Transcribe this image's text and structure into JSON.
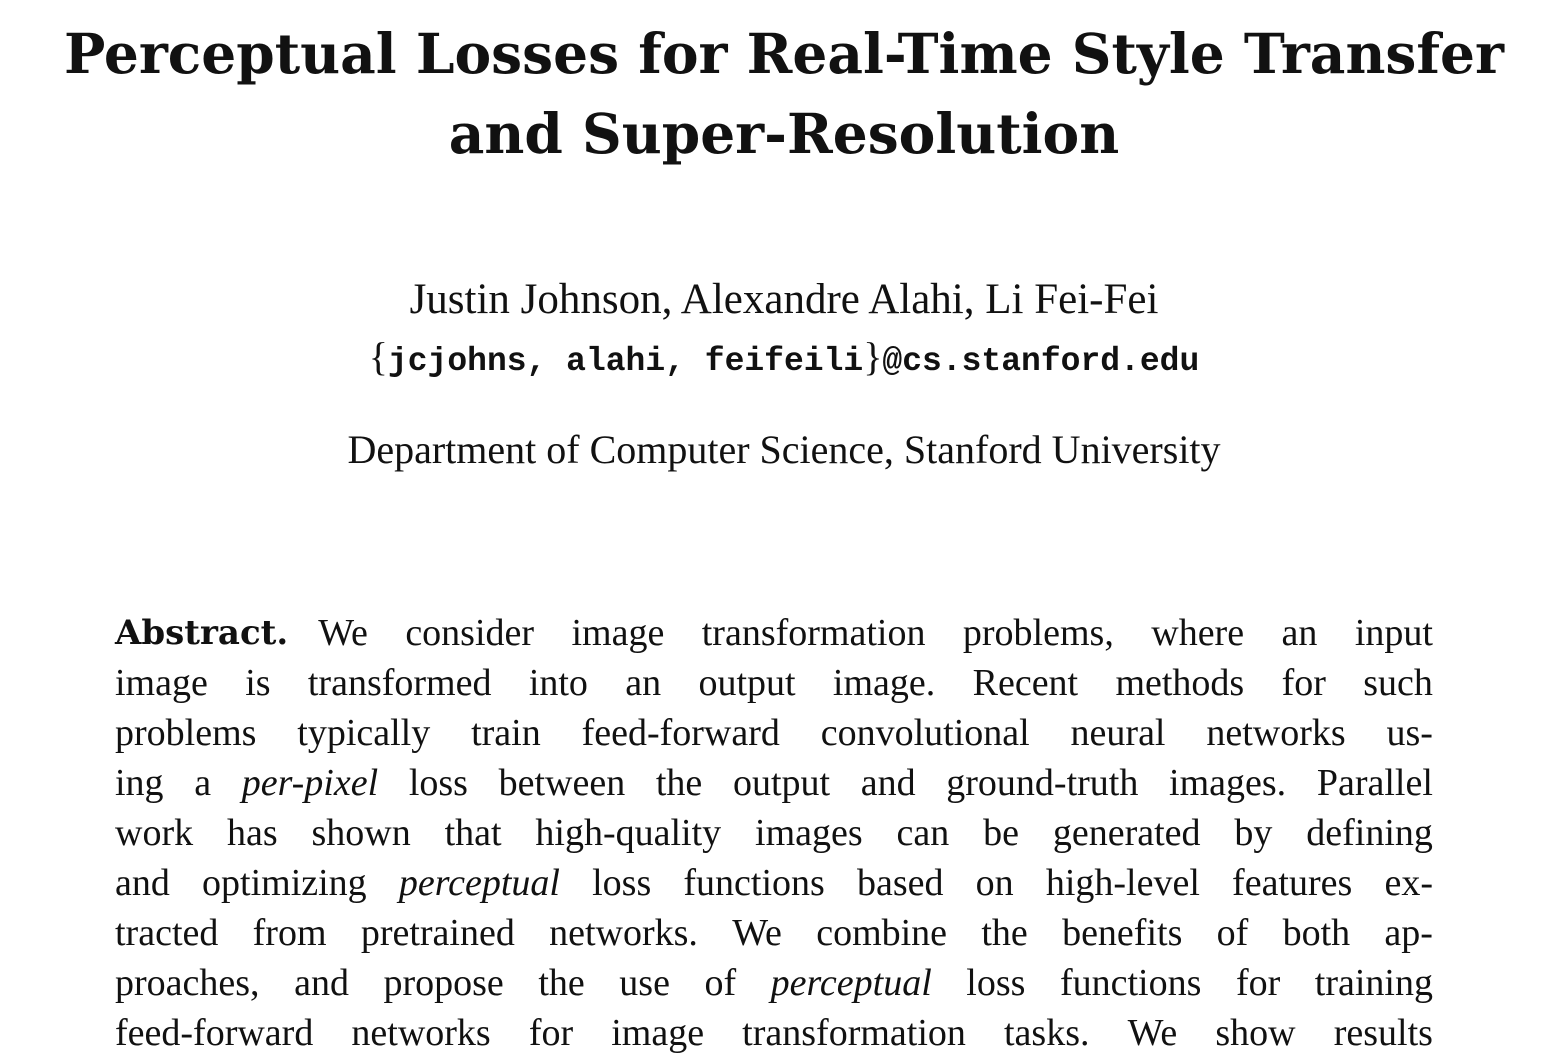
{
  "title": {
    "line1": "Perceptual Losses for Real-Time Style Transfer",
    "line2": "and Super-Resolution"
  },
  "authors": "Justin Johnson, Alexandre Alahi, Li Fei-Fei",
  "emails": {
    "open_brace": "{",
    "users": "jcjohns, alahi, feifeili",
    "close_brace": "}",
    "domain": "@cs.stanford.edu"
  },
  "affiliation": "Department of Computer Science, Stanford University",
  "abstract": {
    "label": "Abstract.",
    "lines": [
      [
        "We",
        "consider",
        "image",
        "transformation",
        "problems,",
        "where",
        "an",
        "input"
      ],
      [
        "image",
        "is",
        "transformed",
        "into",
        "an",
        "output",
        "image.",
        "Recent",
        "methods",
        "for",
        "such"
      ],
      [
        "problems",
        "typically",
        "train",
        "feed-forward",
        "convolutional",
        "neural",
        "networks",
        "us-"
      ],
      [
        "ing",
        "a",
        "per-pixel",
        "loss",
        "between",
        "the",
        "output",
        "and",
        "ground-truth",
        "images.",
        "Parallel"
      ],
      [
        "work",
        "has",
        "shown",
        "that",
        "high-quality",
        "images",
        "can",
        "be",
        "generated",
        "by",
        "defining"
      ],
      [
        "and",
        "optimizing",
        "perceptual",
        "loss",
        "functions",
        "based",
        "on",
        "high-level",
        "features",
        "ex-"
      ],
      [
        "tracted",
        "from",
        "pretrained",
        "networks.",
        "We",
        "combine",
        "the",
        "benefits",
        "of",
        "both",
        "ap-"
      ],
      [
        "proaches,",
        "and",
        "propose",
        "the",
        "use",
        "of",
        "perceptual",
        "loss",
        "functions",
        "for",
        "training"
      ],
      [
        "feed-forward",
        "networks",
        "for",
        "image",
        "transformation",
        "tasks.",
        "We",
        "show",
        "results"
      ]
    ],
    "italic_words": [
      "per-pixel",
      "perceptual"
    ]
  }
}
